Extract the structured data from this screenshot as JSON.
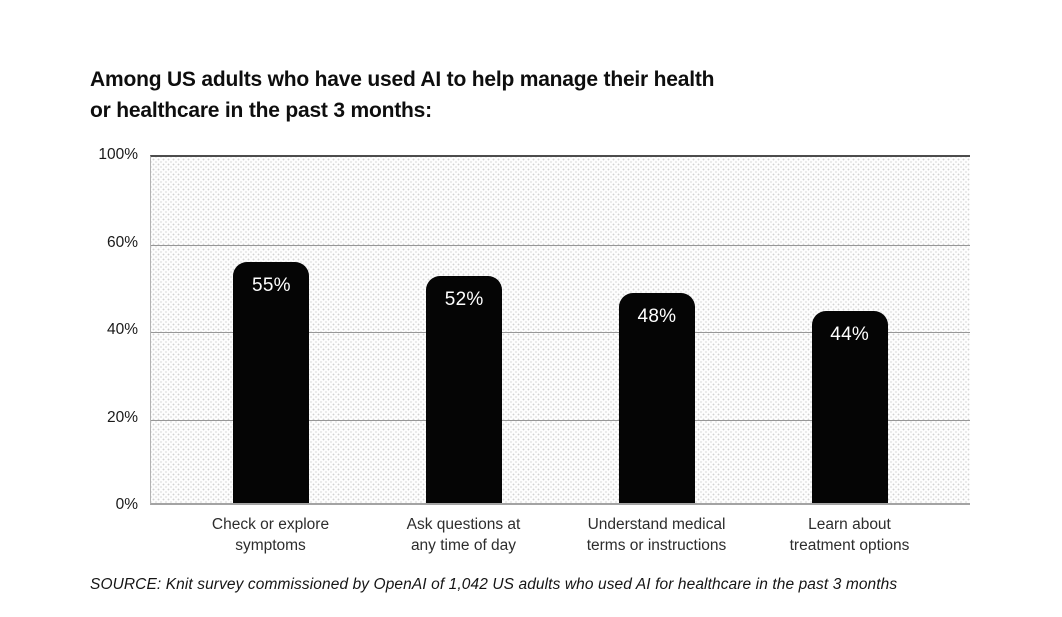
{
  "page": {
    "title": "Among US adults who have used AI to help manage their health\nor healthcare in the past 3 months:",
    "source": "SOURCE: Knit survey commissioned by OpenAI of 1,042 US adults who used AI for healthcare in the past 3 months"
  },
  "chart_data": {
    "type": "bar",
    "title": "Among US adults who have used AI to help manage their health or healthcare in the past 3 months:",
    "categories": [
      "Check or explore\nsymptoms",
      "Ask questions at\nany time of day",
      "Understand medical\nterms or instructions",
      "Learn about\ntreatment options"
    ],
    "values": [
      55,
      52,
      48,
      44
    ],
    "bar_labels": [
      "55%",
      "52%",
      "48%",
      "44%"
    ],
    "xlabel": "",
    "ylabel": "",
    "ylim": [
      0,
      100
    ],
    "yticks": [
      0,
      20,
      40,
      60,
      100
    ],
    "ytick_labels": [
      "0%",
      "20%",
      "40%",
      "60%",
      "100%"
    ],
    "layout_hints": {
      "grid": "horizontal",
      "ticks_evenly_spaced": true,
      "legend": "none",
      "plot_background": "dotted-halftone"
    },
    "colors": {
      "bar": "#050505",
      "bar_value_text": "#ffffff",
      "gridline": "#979797",
      "plot_top_border": "#4c4c4c",
      "plot_bottom_border": "#a3a3a3",
      "plot_left_border": "#b3b3b3",
      "title_text": "#0e0e0e",
      "axis_text": "#1a1a1a",
      "category_text": "#2d2d2d",
      "source_text": "#151515",
      "background": "#ffffff"
    }
  }
}
